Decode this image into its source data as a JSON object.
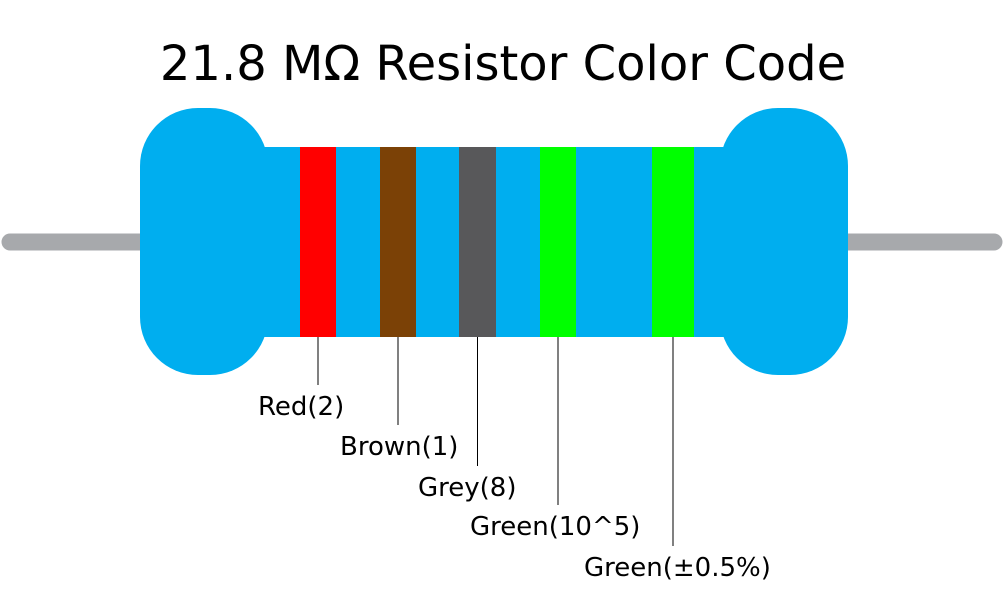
{
  "title": "21.8 MΩ Resistor Color Code",
  "bands": [
    {
      "label": "Red(2)",
      "color": "#ff0000"
    },
    {
      "label": "Brown(1)",
      "color": "#7b4106"
    },
    {
      "label": "Grey(8)",
      "color": "#58585a"
    },
    {
      "label": "Green(10^5)",
      "color": "#00ff00"
    },
    {
      "label": "Green(±0.5%)",
      "color": "#00ff00"
    }
  ]
}
